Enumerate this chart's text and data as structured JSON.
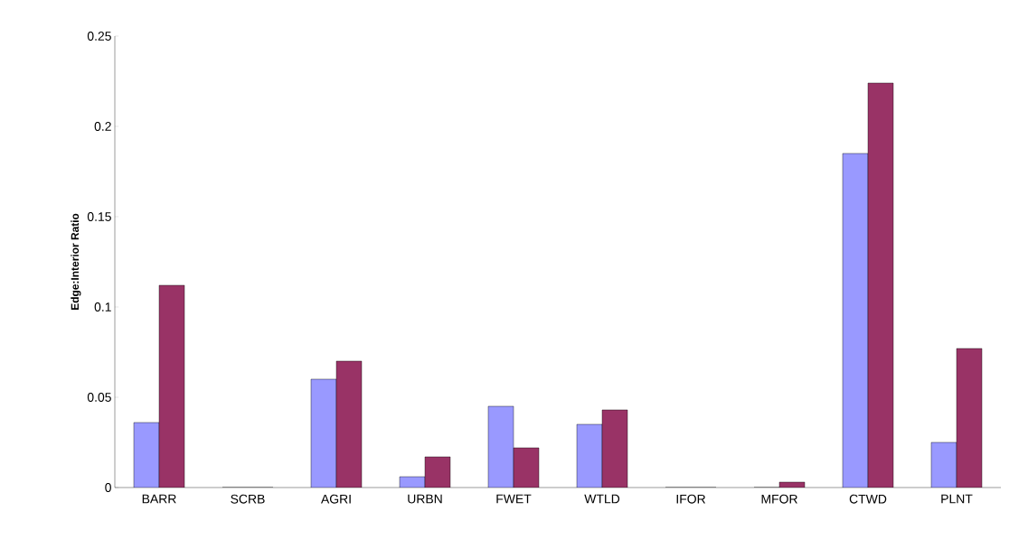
{
  "chart_data": {
    "type": "bar",
    "ylabel": "Edge:Interior Ratio",
    "categories": [
      "BARR",
      "SCRB",
      "AGRI",
      "URBN",
      "FWET",
      "WTLD",
      "IFOR",
      "MFOR",
      "CTWD",
      "PLNT"
    ],
    "series": [
      {
        "color": "#9999ff",
        "values": [
          0.036,
          0,
          0.06,
          0.006,
          0.045,
          0.035,
          0,
          0,
          0.185,
          0.025
        ]
      },
      {
        "color": "#993366",
        "values": [
          0.112,
          0,
          0.07,
          0.017,
          0.022,
          0.043,
          0,
          0.003,
          0.224,
          0.077
        ]
      }
    ],
    "ylim": [
      0,
      0.25
    ],
    "yticks": [
      0,
      0.05,
      0.1,
      0.15,
      0.2,
      0.25
    ]
  }
}
